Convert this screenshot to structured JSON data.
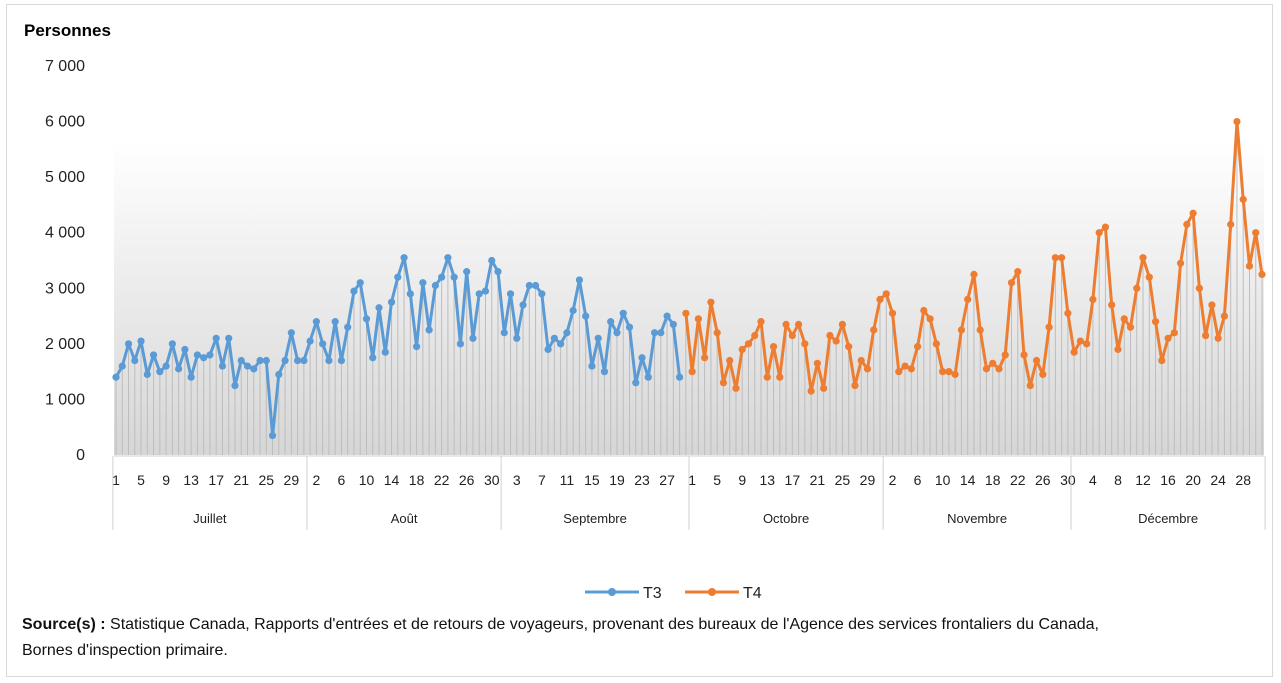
{
  "chart_data": {
    "type": "line",
    "ylabel": "Personnes",
    "ylim": [
      0,
      7000
    ],
    "yticks": [
      "0",
      "1 000",
      "2 000",
      "3 000",
      "4 000",
      "5 000",
      "6 000",
      "7 000"
    ],
    "grid": false,
    "legend_position": "bottom",
    "months": [
      {
        "name": "Juillet",
        "days": 31,
        "ticks": [
          "1",
          "5",
          "9",
          "13",
          "17",
          "21",
          "25",
          "29"
        ]
      },
      {
        "name": "Août",
        "days": 31,
        "ticks": [
          "2",
          "6",
          "10",
          "14",
          "18",
          "22",
          "26",
          "30"
        ]
      },
      {
        "name": "Septembre",
        "days": 30,
        "ticks": [
          "3",
          "7",
          "11",
          "15",
          "19",
          "23",
          "27"
        ]
      },
      {
        "name": "Octobre",
        "days": 31,
        "ticks": [
          "1",
          "5",
          "9",
          "13",
          "17",
          "21",
          "25",
          "29"
        ]
      },
      {
        "name": "Novembre",
        "days": 30,
        "ticks": [
          "2",
          "6",
          "10",
          "14",
          "18",
          "22",
          "26",
          "30"
        ]
      },
      {
        "name": "Décembre",
        "days": 31,
        "ticks": [
          "4",
          "8",
          "12",
          "16",
          "20",
          "24",
          "28"
        ]
      }
    ],
    "series": [
      {
        "name": "T3",
        "color": "#5b9bd5",
        "start_index": 0,
        "values": [
          1400,
          1600,
          2000,
          1700,
          2050,
          1450,
          1800,
          1500,
          1600,
          2000,
          1550,
          1900,
          1400,
          1800,
          1750,
          1800,
          2100,
          1600,
          2100,
          1250,
          1700,
          1600,
          1550,
          1700,
          1700,
          350,
          1450,
          1700,
          2200,
          1700,
          1700,
          2050,
          2400,
          2000,
          1700,
          2400,
          1700,
          2300,
          2950,
          3100,
          2450,
          1750,
          2650,
          1850,
          2750,
          3200,
          3550,
          2900,
          1950,
          3100,
          2250,
          3050,
          3200,
          3550,
          3200,
          2000,
          3300,
          2100,
          2900,
          2950,
          3500,
          3300,
          2200,
          2900,
          2100,
          2700,
          3050,
          3050,
          2900,
          1900,
          2100,
          2000,
          2200,
          2600,
          3150,
          2500,
          1600,
          2100,
          1500,
          2400,
          2200,
          2550,
          2300,
          1300,
          1750,
          1400,
          2200,
          2200,
          2500,
          2350,
          1400
        ]
      },
      {
        "name": "T4",
        "color": "#ed7d31",
        "start_index": 91,
        "values": [
          2550,
          1500,
          2450,
          1750,
          2750,
          2200,
          1300,
          1700,
          1200,
          1900,
          2000,
          2150,
          2400,
          1400,
          1950,
          1400,
          2350,
          2150,
          2350,
          2000,
          1150,
          1650,
          1200,
          2150,
          2050,
          2350,
          1950,
          1250,
          1700,
          1550,
          2250,
          2800,
          2900,
          2550,
          1500,
          1600,
          1550,
          1950,
          2600,
          2450,
          2000,
          1500,
          1500,
          1450,
          2250,
          2800,
          3250,
          2250,
          1550,
          1650,
          1550,
          1800,
          3100,
          3300,
          1800,
          1250,
          1700,
          1450,
          2300,
          3550,
          3550,
          2550,
          1850,
          2050,
          2000,
          2800,
          4000,
          4100,
          2700,
          1900,
          2450,
          2300,
          3000,
          3550,
          3200,
          2400,
          1700,
          2100,
          2200,
          3450,
          4150,
          4350,
          3000,
          2150,
          2700,
          2100,
          2500,
          4150,
          6000,
          4600,
          3400,
          4000,
          3250
        ]
      }
    ]
  },
  "source": {
    "label": "Source(s) :",
    "text": " Statistique Canada, Rapports d'entrées et de retours de voyageurs, provenant des bureaux de l'Agence des services frontaliers du Canada, Bornes d'inspection primaire."
  }
}
